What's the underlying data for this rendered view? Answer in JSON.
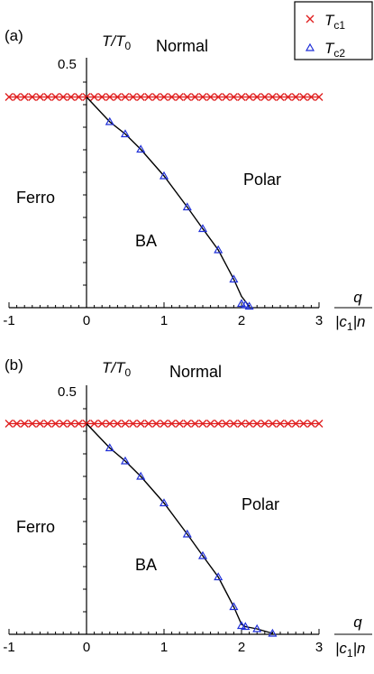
{
  "legend": {
    "items": [
      {
        "marker": "cross",
        "color": "#e02020",
        "label_main": "T",
        "label_sub": "c1"
      },
      {
        "marker": "triangle",
        "color": "#1f2fd8",
        "label_main": "T",
        "label_sub": "c2"
      }
    ],
    "placement": "top-right"
  },
  "chart_data": [
    {
      "type": "scatter",
      "panel_label": "(a)",
      "ylabel": {
        "main": "T/T",
        "sub": "0"
      },
      "xlabel": {
        "numerator": "q",
        "denominator_main": "|c",
        "denominator_sub": "1",
        "denominator_tail": "|n"
      },
      "xlim": [
        -1,
        3
      ],
      "ylim": [
        0,
        0.5
      ],
      "x_ticks": [
        "-1",
        "0",
        "1",
        "2",
        "3"
      ],
      "y_tick_label": "0.5",
      "regions": [
        "Normal",
        "Polar",
        "Ferro",
        "BA"
      ],
      "series": [
        {
          "name": "Tc1",
          "marker": "cross",
          "color": "#e02020",
          "x": [
            -1.0,
            -0.9,
            -0.8,
            -0.7,
            -0.6,
            -0.5,
            -0.4,
            -0.3,
            -0.2,
            -0.1,
            0.0,
            0.1,
            0.2,
            0.3,
            0.4,
            0.5,
            0.6,
            0.7,
            0.8,
            0.9,
            1.0,
            1.1,
            1.2,
            1.3,
            1.4,
            1.5,
            1.6,
            1.7,
            1.8,
            1.9,
            2.0,
            2.1,
            2.2,
            2.3,
            2.4,
            2.5,
            2.6,
            2.7,
            2.8,
            2.9,
            3.0
          ],
          "y": [
            0.467,
            0.467,
            0.467,
            0.467,
            0.467,
            0.467,
            0.467,
            0.467,
            0.467,
            0.467,
            0.467,
            0.467,
            0.467,
            0.467,
            0.467,
            0.467,
            0.467,
            0.467,
            0.467,
            0.467,
            0.467,
            0.467,
            0.467,
            0.467,
            0.467,
            0.467,
            0.467,
            0.467,
            0.467,
            0.467,
            0.467,
            0.467,
            0.467,
            0.467,
            0.467,
            0.467,
            0.467,
            0.467,
            0.467,
            0.467,
            0.467
          ]
        },
        {
          "name": "Tc2",
          "marker": "triangle",
          "color": "#1f2fd8",
          "x": [
            0.3,
            0.5,
            0.7,
            1.0,
            1.3,
            1.5,
            1.7,
            1.9,
            2.0,
            2.05,
            2.1
          ],
          "y": [
            0.412,
            0.385,
            0.351,
            0.292,
            0.223,
            0.175,
            0.128,
            0.063,
            0.009,
            0.006,
            0.003
          ]
        }
      ],
      "curve": {
        "x": [
          0.0,
          0.3,
          0.5,
          0.7,
          1.0,
          1.3,
          1.5,
          1.7,
          1.9,
          2.0,
          2.1
        ],
        "y": [
          0.467,
          0.412,
          0.385,
          0.351,
          0.292,
          0.223,
          0.175,
          0.128,
          0.063,
          0.025,
          0.003
        ]
      }
    },
    {
      "type": "scatter",
      "panel_label": "(b)",
      "ylabel": {
        "main": "T/T",
        "sub": "0"
      },
      "xlabel": {
        "numerator": "q",
        "denominator_main": "|c",
        "denominator_sub": "1",
        "denominator_tail": "|n"
      },
      "xlim": [
        -1,
        3
      ],
      "ylim": [
        0,
        0.5
      ],
      "x_ticks": [
        "-1",
        "0",
        "1",
        "2",
        "3"
      ],
      "y_tick_label": "0.5",
      "regions": [
        "Normal",
        "Polar",
        "Ferro",
        "BA"
      ],
      "series": [
        {
          "name": "Tc1",
          "marker": "cross",
          "color": "#e02020",
          "x": [
            -1.0,
            -0.9,
            -0.8,
            -0.7,
            -0.6,
            -0.5,
            -0.4,
            -0.3,
            -0.2,
            -0.1,
            0.0,
            0.1,
            0.2,
            0.3,
            0.4,
            0.5,
            0.6,
            0.7,
            0.8,
            0.9,
            1.0,
            1.1,
            1.2,
            1.3,
            1.4,
            1.5,
            1.6,
            1.7,
            1.8,
            1.9,
            2.0,
            2.1,
            2.2,
            2.3,
            2.4,
            2.5,
            2.6,
            2.7,
            2.8,
            2.9,
            3.0
          ],
          "y": [
            0.467,
            0.467,
            0.467,
            0.467,
            0.467,
            0.467,
            0.467,
            0.467,
            0.467,
            0.467,
            0.467,
            0.467,
            0.467,
            0.467,
            0.467,
            0.467,
            0.467,
            0.467,
            0.467,
            0.467,
            0.467,
            0.467,
            0.467,
            0.467,
            0.467,
            0.467,
            0.467,
            0.467,
            0.467,
            0.467,
            0.467,
            0.467,
            0.467,
            0.467,
            0.467,
            0.467,
            0.467,
            0.467,
            0.467,
            0.467,
            0.467
          ]
        },
        {
          "name": "Tc2",
          "marker": "triangle",
          "color": "#1f2fd8",
          "x": [
            0.3,
            0.5,
            0.7,
            1.0,
            1.3,
            1.5,
            1.7,
            1.9,
            2.0,
            2.05,
            2.2,
            2.4
          ],
          "y": [
            0.413,
            0.384,
            0.35,
            0.291,
            0.222,
            0.174,
            0.127,
            0.061,
            0.019,
            0.017,
            0.012,
            0.002
          ]
        }
      ],
      "curve": {
        "x": [
          0.0,
          0.3,
          0.5,
          0.7,
          1.0,
          1.3,
          1.5,
          1.7,
          1.9,
          2.0,
          2.05,
          2.2,
          2.4
        ],
        "y": [
          0.467,
          0.413,
          0.384,
          0.35,
          0.291,
          0.222,
          0.174,
          0.127,
          0.061,
          0.022,
          0.017,
          0.012,
          0.002
        ]
      }
    }
  ]
}
